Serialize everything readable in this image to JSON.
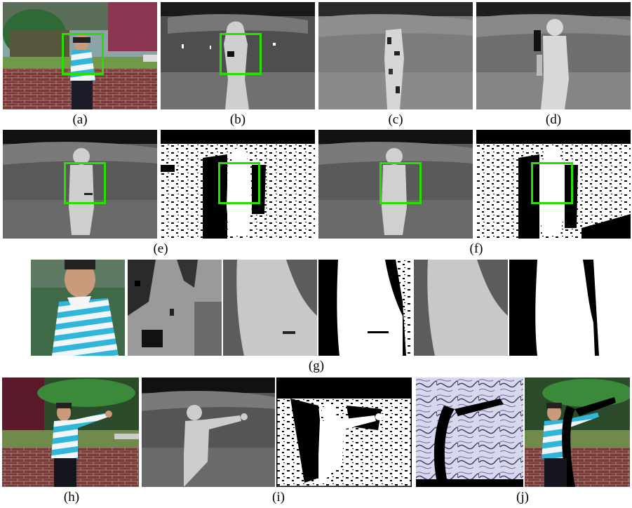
{
  "figure": {
    "captions": {
      "a": "(a)",
      "b": "(b)",
      "c": "(c)",
      "d": "(d)",
      "e": "(e)",
      "f": "(f)",
      "g": "(g)",
      "h": "(h)",
      "i": "(i)",
      "j": "(j)"
    },
    "colors": {
      "roi_box": "#27e000",
      "background": "#ffffff",
      "caption_text": "#000000"
    }
  }
}
